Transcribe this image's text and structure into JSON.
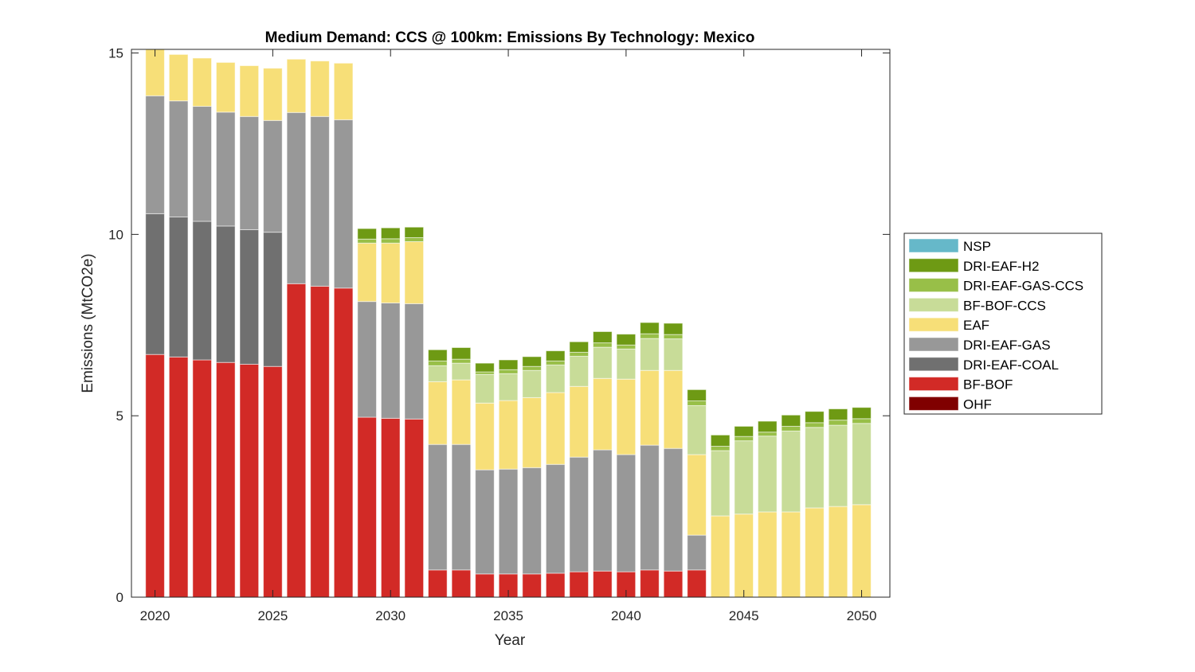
{
  "chart_data": {
    "type": "bar",
    "stacked": true,
    "title": "Medium Demand: CCS @ 100km: Emissions By Technology: Mexico",
    "xlabel": "Year",
    "ylabel": "Emissions (MtCO2e)",
    "xlim": [
      2019,
      2051.2
    ],
    "ylim": [
      0,
      15.1
    ],
    "xticks": [
      2020,
      2025,
      2030,
      2035,
      2040,
      2045,
      2050
    ],
    "yticks": [
      0,
      5,
      10,
      15
    ],
    "grid": false,
    "legend_position": "right",
    "categories": [
      2020,
      2021,
      2022,
      2023,
      2024,
      2025,
      2026,
      2027,
      2028,
      2029,
      2030,
      2031,
      2032,
      2033,
      2034,
      2035,
      2036,
      2037,
      2038,
      2039,
      2040,
      2041,
      2042,
      2043,
      2044,
      2045,
      2046,
      2047,
      2048,
      2049,
      2050
    ],
    "series": [
      {
        "name": "OHF",
        "color": "#800000",
        "values": [
          0,
          0,
          0,
          0,
          0,
          0,
          0,
          0,
          0,
          0,
          0,
          0,
          0,
          0,
          0,
          0,
          0,
          0,
          0,
          0,
          0,
          0,
          0,
          0,
          0,
          0,
          0,
          0,
          0,
          0,
          0
        ]
      },
      {
        "name": "BF-BOF",
        "color": "#d22a26",
        "values": [
          6.69,
          6.62,
          6.54,
          6.47,
          6.42,
          6.36,
          8.64,
          8.57,
          8.52,
          4.96,
          4.93,
          4.91,
          0.75,
          0.75,
          0.64,
          0.64,
          0.64,
          0.66,
          0.7,
          0.72,
          0.7,
          0.75,
          0.72,
          0.75,
          0,
          0,
          0,
          0,
          0,
          0,
          0
        ]
      },
      {
        "name": "DRI-EAF-COAL",
        "color": "#707070",
        "values": [
          3.88,
          3.86,
          3.82,
          3.76,
          3.71,
          3.7,
          0,
          0,
          0,
          0,
          0,
          0,
          0,
          0,
          0,
          0,
          0,
          0,
          0,
          0,
          0,
          0,
          0,
          0,
          0,
          0,
          0,
          0,
          0,
          0,
          0
        ]
      },
      {
        "name": "DRI-EAF-GAS",
        "color": "#989898",
        "values": [
          3.25,
          3.2,
          3.17,
          3.14,
          3.12,
          3.08,
          4.72,
          4.68,
          4.64,
          3.19,
          3.18,
          3.18,
          3.46,
          3.46,
          2.87,
          2.89,
          2.93,
          3.0,
          3.16,
          3.34,
          3.23,
          3.44,
          3.38,
          0.96,
          0,
          0,
          0,
          0,
          0,
          0,
          0
        ]
      },
      {
        "name": "EAF",
        "color": "#f7df78",
        "values": [
          1.28,
          1.28,
          1.33,
          1.37,
          1.4,
          1.44,
          1.47,
          1.53,
          1.56,
          1.61,
          1.65,
          1.71,
          1.73,
          1.78,
          1.84,
          1.89,
          1.93,
          1.98,
          1.95,
          1.97,
          2.08,
          2.06,
          2.15,
          2.22,
          2.24,
          2.29,
          2.35,
          2.35,
          2.46,
          2.5,
          2.55
        ]
      },
      {
        "name": "BF-BOF-CCS",
        "color": "#c8dc98",
        "values": [
          0,
          0,
          0,
          0,
          0,
          0,
          0,
          0,
          0,
          0,
          0,
          0,
          0.44,
          0.46,
          0.79,
          0.74,
          0.75,
          0.76,
          0.83,
          0.86,
          0.83,
          0.88,
          0.87,
          1.35,
          1.8,
          2.02,
          2.09,
          2.23,
          2.22,
          2.24,
          2.24
        ]
      },
      {
        "name": "DRI-EAF-GAS-CCS",
        "color": "#98bf48",
        "values": [
          0,
          0,
          0,
          0,
          0,
          0,
          0,
          0,
          0,
          0.11,
          0.12,
          0.11,
          0.13,
          0.11,
          0.07,
          0.11,
          0.11,
          0.11,
          0.11,
          0.12,
          0.11,
          0.13,
          0.12,
          0.13,
          0.12,
          0.12,
          0.11,
          0.13,
          0.13,
          0.14,
          0.13
        ]
      },
      {
        "name": "DRI-EAF-H2",
        "color": "#6e9a14",
        "values": [
          0,
          0,
          0,
          0,
          0,
          0,
          0,
          0,
          0,
          0.29,
          0.3,
          0.29,
          0.31,
          0.32,
          0.24,
          0.27,
          0.27,
          0.28,
          0.29,
          0.31,
          0.3,
          0.31,
          0.31,
          0.31,
          0.31,
          0.28,
          0.3,
          0.31,
          0.31,
          0.31,
          0.31
        ]
      },
      {
        "name": "NSP",
        "color": "#66b8c9",
        "values": [
          0,
          0,
          0,
          0,
          0,
          0,
          0,
          0,
          0,
          0,
          0,
          0,
          0,
          0,
          0,
          0,
          0,
          0,
          0,
          0,
          0,
          0,
          0,
          0,
          0,
          0,
          0,
          0,
          0,
          0,
          0
        ]
      }
    ]
  }
}
